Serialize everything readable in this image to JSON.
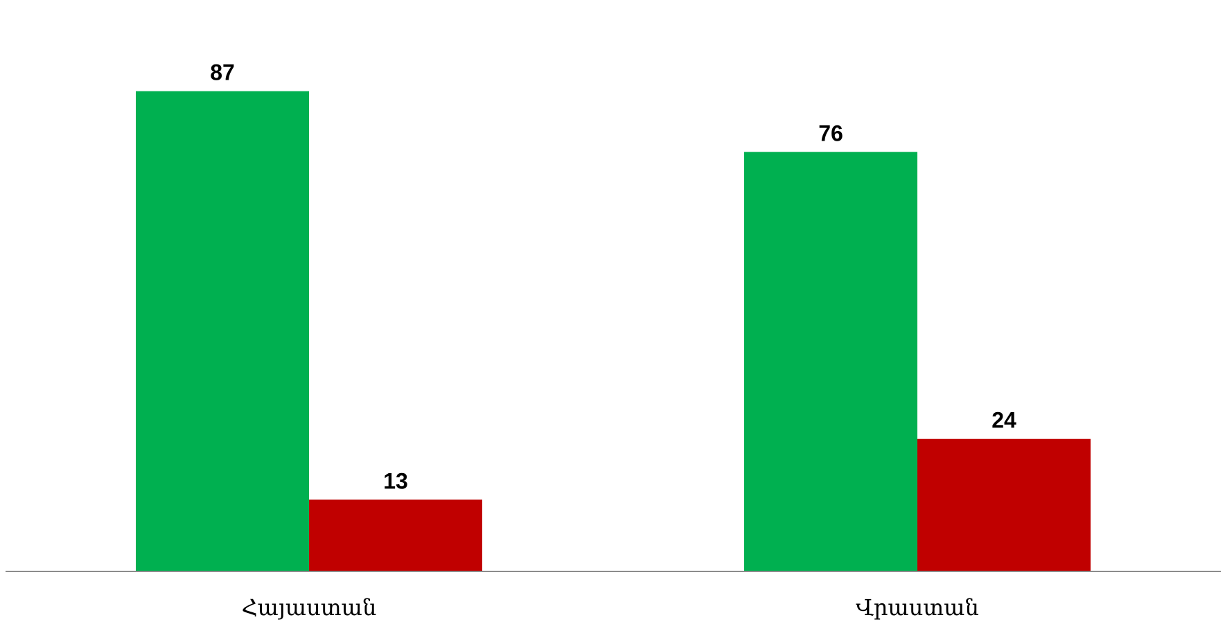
{
  "chart_data": {
    "type": "bar",
    "categories": [
      "Հայաստան",
      "Վրաստան"
    ],
    "series": [
      {
        "values": [
          87,
          13
        ]
      },
      {
        "values": [
          76,
          24
        ]
      }
    ],
    "ylim": [
      0,
      100
    ],
    "grid": false,
    "legend": "none",
    "colors": [
      "#00b050",
      "#c00000"
    ]
  }
}
